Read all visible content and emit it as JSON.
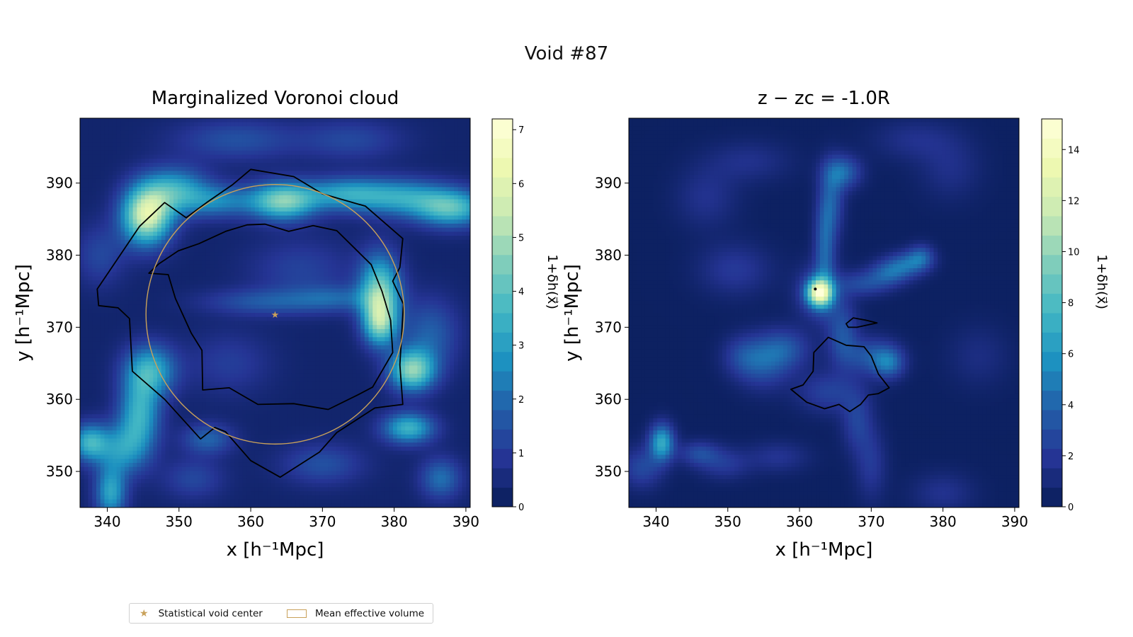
{
  "figure": {
    "suptitle": "Void #87"
  },
  "legend": {
    "items": [
      "Statistical void center",
      "Mean effective volume"
    ],
    "marker_color": "#c9a15a",
    "placement": "lower-left"
  },
  "colormap": {
    "name": "YlGnBu",
    "stops": [
      "#081d58",
      "#253494",
      "#225ea8",
      "#1d91c0",
      "#41b6c4",
      "#7fcdbb",
      "#c7e9b4",
      "#edf8b1",
      "#ffffd9"
    ]
  },
  "chart_data": [
    {
      "type": "heatmap",
      "title": "Marginalized Voronoi cloud",
      "xlabel": "x [h⁻¹Mpc]",
      "ylabel": "y [h⁻¹Mpc]",
      "xlim": [
        336.2,
        390.6
      ],
      "ylim": [
        345,
        399
      ],
      "xticks": [
        340,
        350,
        360,
        370,
        380,
        390
      ],
      "yticks": [
        350,
        360,
        370,
        380,
        390
      ],
      "colorbar": {
        "label": "1+δh(x⃗)",
        "range": [
          0,
          7.2
        ],
        "ticks": [
          0,
          1,
          2,
          3,
          4,
          5,
          6,
          7
        ]
      },
      "void_center": {
        "x": 363.4,
        "y": 371.8,
        "marker": "star",
        "color": "#c9a15a"
      },
      "effective_radius_circle": {
        "cx": 363.4,
        "cy": 371.8,
        "r": 18.0,
        "color": "#c9a15a"
      },
      "contours": [
        [
          [
            338.6,
            375.3
          ],
          [
            344.5,
            384.0
          ],
          [
            348.0,
            387.3
          ],
          [
            351.0,
            385.2
          ],
          [
            354.0,
            387.4
          ],
          [
            357.5,
            389.8
          ],
          [
            360.0,
            391.9
          ],
          [
            366.0,
            390.9
          ],
          [
            370.0,
            388.5
          ],
          [
            376.0,
            386.8
          ],
          [
            381.2,
            382.3
          ],
          [
            380.8,
            378.3
          ],
          [
            379.8,
            376.4
          ],
          [
            381.3,
            373.2
          ],
          [
            380.8,
            364.8
          ],
          [
            381.2,
            359.3
          ],
          [
            377.3,
            358.8
          ],
          [
            372.0,
            355.4
          ],
          [
            369.6,
            352.7
          ],
          [
            364.1,
            349.2
          ],
          [
            360.0,
            351.5
          ],
          [
            356.5,
            355.5
          ],
          [
            355.0,
            356.1
          ],
          [
            353.0,
            354.5
          ],
          [
            348.0,
            360.0
          ],
          [
            343.5,
            363.9
          ],
          [
            343.1,
            371.2
          ],
          [
            341.5,
            372.7
          ],
          [
            338.8,
            373.0
          ],
          [
            338.6,
            375.3
          ]
        ],
        [
          [
            359.5,
            384.2
          ],
          [
            356.5,
            383.3
          ],
          [
            352.8,
            381.6
          ],
          [
            349.9,
            380.6
          ],
          [
            347.2,
            378.8
          ],
          [
            345.8,
            377.5
          ],
          [
            348.5,
            377.3
          ],
          [
            349.5,
            374.0
          ],
          [
            351.7,
            369.2
          ],
          [
            353.2,
            366.8
          ],
          [
            353.3,
            361.3
          ],
          [
            357.0,
            361.6
          ],
          [
            361.0,
            359.3
          ],
          [
            366.0,
            359.4
          ],
          [
            370.8,
            358.6
          ],
          [
            374.9,
            360.6
          ],
          [
            377.0,
            361.7
          ],
          [
            379.8,
            366.5
          ],
          [
            379.5,
            371.0
          ],
          [
            378.3,
            375.0
          ],
          [
            376.8,
            378.7
          ],
          [
            372.0,
            383.4
          ],
          [
            368.7,
            384.1
          ],
          [
            365.3,
            383.3
          ],
          [
            362.0,
            384.3
          ],
          [
            359.5,
            384.2
          ]
        ]
      ],
      "blobs": [
        {
          "x": 345.5,
          "y": 385.5,
          "amp": 5.5,
          "sx": 2.4,
          "sy": 2.8
        },
        {
          "x": 349.5,
          "y": 389,
          "amp": 2.8,
          "sx": 3.2,
          "sy": 2.2
        },
        {
          "x": 355.5,
          "y": 387.5,
          "amp": 2.0,
          "sx": 3.5,
          "sy": 1.6
        },
        {
          "x": 364.5,
          "y": 387.5,
          "amp": 4.2,
          "sx": 3.2,
          "sy": 1.8
        },
        {
          "x": 373,
          "y": 388.5,
          "amp": 2.5,
          "sx": 4.0,
          "sy": 1.6
        },
        {
          "x": 381,
          "y": 388,
          "amp": 2.6,
          "sx": 4.5,
          "sy": 1.8
        },
        {
          "x": 388,
          "y": 386.5,
          "amp": 3.4,
          "sx": 3.5,
          "sy": 1.8
        },
        {
          "x": 378,
          "y": 375,
          "amp": 4.0,
          "sx": 2.0,
          "sy": 3.5
        },
        {
          "x": 378,
          "y": 370.5,
          "amp": 3.3,
          "sx": 1.6,
          "sy": 2.2
        },
        {
          "x": 382.5,
          "y": 364,
          "amp": 4.2,
          "sx": 2.2,
          "sy": 2.0
        },
        {
          "x": 385,
          "y": 369,
          "amp": 1.5,
          "sx": 2.8,
          "sy": 3.5
        },
        {
          "x": 382,
          "y": 356,
          "amp": 3.2,
          "sx": 2.5,
          "sy": 1.5
        },
        {
          "x": 386.5,
          "y": 349,
          "amp": 1.8,
          "sx": 2.0,
          "sy": 2.0
        },
        {
          "x": 346,
          "y": 364,
          "amp": 3.0,
          "sx": 2.5,
          "sy": 2.5
        },
        {
          "x": 344.5,
          "y": 358,
          "amp": 3.0,
          "sx": 2.0,
          "sy": 3.5
        },
        {
          "x": 342,
          "y": 353,
          "amp": 2.3,
          "sx": 2.5,
          "sy": 2.5
        },
        {
          "x": 337.5,
          "y": 354,
          "amp": 3.0,
          "sx": 1.8,
          "sy": 1.8
        },
        {
          "x": 340.5,
          "y": 347,
          "amp": 2.8,
          "sx": 1.5,
          "sy": 2.5
        },
        {
          "x": 354,
          "y": 354.5,
          "amp": 1.6,
          "sx": 2.5,
          "sy": 1.5
        },
        {
          "x": 362,
          "y": 373.5,
          "amp": 1.3,
          "sx": 6.0,
          "sy": 1.3
        },
        {
          "x": 372,
          "y": 374,
          "amp": 1.2,
          "sx": 4.0,
          "sy": 1.3
        },
        {
          "x": 358,
          "y": 396,
          "amp": 1.2,
          "sx": 6.0,
          "sy": 2.0
        },
        {
          "x": 374,
          "y": 396,
          "amp": 1.0,
          "sx": 5.0,
          "sy": 2.0
        },
        {
          "x": 339,
          "y": 380,
          "amp": 1.0,
          "sx": 2.5,
          "sy": 3.0
        },
        {
          "x": 370,
          "y": 351,
          "amp": 1.2,
          "sx": 4.0,
          "sy": 2.0
        },
        {
          "x": 352,
          "y": 349,
          "amp": 1.0,
          "sx": 3.0,
          "sy": 2.0
        },
        {
          "x": 367,
          "y": 378,
          "amp": 0.9,
          "sx": 5.0,
          "sy": 3.0
        },
        {
          "x": 357,
          "y": 365,
          "amp": 0.8,
          "sx": 4.0,
          "sy": 3.0
        }
      ]
    },
    {
      "type": "heatmap",
      "title": "z − zc = -1.0R",
      "xlabel": "x [h⁻¹Mpc]",
      "ylabel": "y [h⁻¹Mpc]",
      "xlim": [
        336.2,
        390.6
      ],
      "ylim": [
        345,
        399
      ],
      "xticks": [
        340,
        350,
        360,
        370,
        380,
        390
      ],
      "yticks": [
        350,
        360,
        370,
        380,
        390
      ],
      "colorbar": {
        "label": "1+δh(x⃗)",
        "range": [
          0,
          15.2
        ],
        "ticks": [
          0,
          2,
          4,
          6,
          8,
          10,
          12,
          14
        ]
      },
      "point_marker": {
        "x": 362.2,
        "y": 375.3,
        "color": "#000000"
      },
      "contours": [
        [
          [
            366.5,
            370.5
          ],
          [
            367.5,
            371.3
          ],
          [
            369.2,
            371.0
          ],
          [
            370.8,
            370.6
          ],
          [
            368.0,
            370.0
          ],
          [
            366.8,
            370.0
          ],
          [
            366.5,
            370.5
          ]
        ],
        [
          [
            358.8,
            361.4
          ],
          [
            361.0,
            359.6
          ],
          [
            363.5,
            358.7
          ],
          [
            365.5,
            359.3
          ],
          [
            367.0,
            358.3
          ],
          [
            368.5,
            359.3
          ],
          [
            369.6,
            360.6
          ],
          [
            371.0,
            360.8
          ],
          [
            372.5,
            361.6
          ],
          [
            371.0,
            363.5
          ],
          [
            370.0,
            366.0
          ],
          [
            369.0,
            367.3
          ],
          [
            366.5,
            367.5
          ],
          [
            364.0,
            368.6
          ],
          [
            362.0,
            366.5
          ],
          [
            361.9,
            363.9
          ],
          [
            360.5,
            362.0
          ],
          [
            358.8,
            361.4
          ]
        ]
      ],
      "blobs": [
        {
          "x": 362.8,
          "y": 374.8,
          "amp": 11.5,
          "sx": 1.2,
          "sy": 1.3
        },
        {
          "x": 362.8,
          "y": 374.8,
          "amp": 3.0,
          "sx": 2.2,
          "sy": 2.6
        },
        {
          "x": 363.5,
          "y": 381,
          "amp": 3.5,
          "sx": 1.0,
          "sy": 4.5
        },
        {
          "x": 364.5,
          "y": 387.5,
          "amp": 3.0,
          "sx": 1.2,
          "sy": 3.5
        },
        {
          "x": 366,
          "y": 391.5,
          "amp": 3.8,
          "sx": 1.8,
          "sy": 1.6
        },
        {
          "x": 369,
          "y": 376,
          "amp": 2.5,
          "sx": 2.5,
          "sy": 1.2
        },
        {
          "x": 372.5,
          "y": 377.5,
          "amp": 3.2,
          "sx": 2.0,
          "sy": 1.2
        },
        {
          "x": 375,
          "y": 378.8,
          "amp": 3.3,
          "sx": 2.0,
          "sy": 1.2
        },
        {
          "x": 377,
          "y": 379.8,
          "amp": 3.0,
          "sx": 1.3,
          "sy": 1.2
        },
        {
          "x": 366,
          "y": 369,
          "amp": 3.0,
          "sx": 1.5,
          "sy": 3.0
        },
        {
          "x": 370,
          "y": 366,
          "amp": 3.0,
          "sx": 2.5,
          "sy": 1.8
        },
        {
          "x": 372.5,
          "y": 365,
          "amp": 3.5,
          "sx": 1.5,
          "sy": 1.5
        },
        {
          "x": 358,
          "y": 367,
          "amp": 2.8,
          "sx": 2.5,
          "sy": 2.0
        },
        {
          "x": 355,
          "y": 365,
          "amp": 2.8,
          "sx": 2.5,
          "sy": 2.5
        },
        {
          "x": 352,
          "y": 366,
          "amp": 2.0,
          "sx": 2.0,
          "sy": 2.0
        },
        {
          "x": 364,
          "y": 361,
          "amp": 2.2,
          "sx": 3.0,
          "sy": 2.0
        },
        {
          "x": 368,
          "y": 357,
          "amp": 2.2,
          "sx": 1.5,
          "sy": 3.0
        },
        {
          "x": 370,
          "y": 351,
          "amp": 1.8,
          "sx": 1.5,
          "sy": 3.5
        },
        {
          "x": 340.8,
          "y": 354,
          "amp": 6.5,
          "sx": 1.2,
          "sy": 1.8
        },
        {
          "x": 338,
          "y": 350.5,
          "amp": 2.5,
          "sx": 2.0,
          "sy": 2.0
        },
        {
          "x": 346,
          "y": 352.5,
          "amp": 2.5,
          "sx": 2.0,
          "sy": 1.2
        },
        {
          "x": 349.5,
          "y": 351,
          "amp": 1.8,
          "sx": 2.5,
          "sy": 1.5
        },
        {
          "x": 351,
          "y": 378,
          "amp": 1.8,
          "sx": 3.5,
          "sy": 2.5
        },
        {
          "x": 347,
          "y": 388,
          "amp": 1.4,
          "sx": 3.0,
          "sy": 3.0
        },
        {
          "x": 353,
          "y": 393,
          "amp": 1.3,
          "sx": 4.0,
          "sy": 2.0
        },
        {
          "x": 376,
          "y": 396,
          "amp": 1.3,
          "sx": 4.0,
          "sy": 2.0
        },
        {
          "x": 381,
          "y": 392,
          "amp": 1.2,
          "sx": 3.0,
          "sy": 3.0
        },
        {
          "x": 380,
          "y": 347,
          "amp": 1.4,
          "sx": 3.0,
          "sy": 2.0
        },
        {
          "x": 357,
          "y": 352,
          "amp": 1.5,
          "sx": 3.0,
          "sy": 1.5
        },
        {
          "x": 385,
          "y": 366,
          "amp": 1.0,
          "sx": 3.0,
          "sy": 3.0
        }
      ]
    }
  ]
}
